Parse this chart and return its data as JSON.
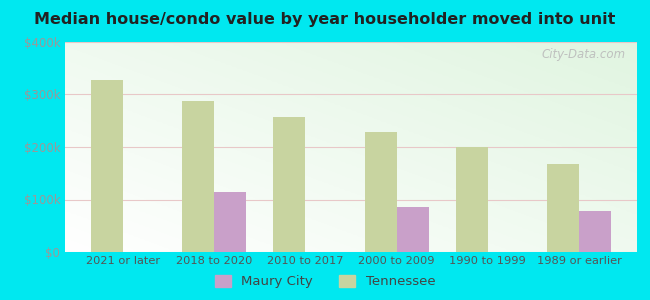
{
  "title": "Median house/condo value by year householder moved into unit",
  "categories": [
    "2021 or later",
    "2018 to 2020",
    "2010 to 2017",
    "2000 to 2009",
    "1990 to 1999",
    "1989 or earlier"
  ],
  "maury_city": [
    null,
    115000,
    null,
    85000,
    null,
    78000
  ],
  "tennessee": [
    328000,
    288000,
    258000,
    228000,
    200000,
    168000
  ],
  "maury_color": "#c9a0c9",
  "tennessee_color": "#c8d4a0",
  "background_outer": "#00e8f0",
  "ylabel_color": "#999999",
  "xlabel_color": "#555555",
  "title_color": "#222222",
  "ylim": [
    0,
    400000
  ],
  "yticks": [
    0,
    100000,
    200000,
    300000,
    400000
  ],
  "ytick_labels": [
    "$0",
    "$100k",
    "$200k",
    "$300k",
    "$400k"
  ],
  "bar_width": 0.35,
  "watermark": "City-Data.com"
}
